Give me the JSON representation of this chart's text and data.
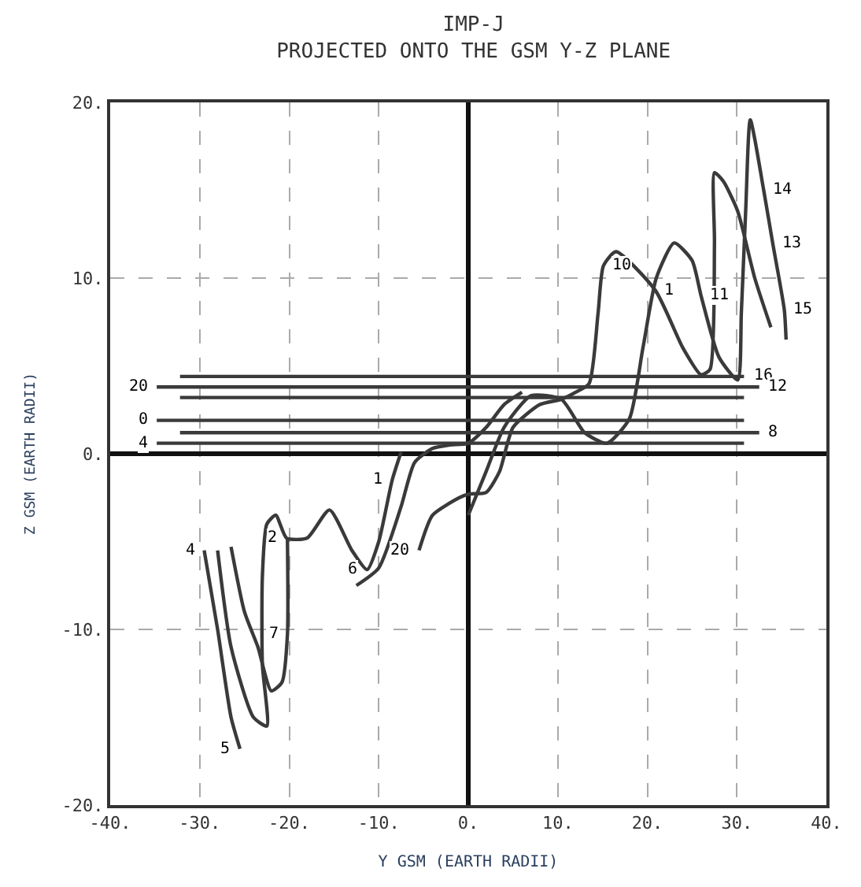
{
  "chart_data": {
    "type": "line",
    "title": "IMP-J",
    "subtitle": "PROJECTED ONTO THE GSM Y-Z PLANE",
    "xlabel": "Y GSM (EARTH RADII)",
    "ylabel": "Z GSM (EARTH RADII)",
    "xlim": [
      -40,
      40
    ],
    "ylim": [
      -20,
      20
    ],
    "xticks": [
      {
        "value": -40,
        "label": "-40."
      },
      {
        "value": -30,
        "label": "-30."
      },
      {
        "value": -20,
        "label": "-20."
      },
      {
        "value": -10,
        "label": "-10."
      },
      {
        "value": 0,
        "label": "0."
      },
      {
        "value": 10,
        "label": "10."
      },
      {
        "value": 20,
        "label": "20."
      },
      {
        "value": 30,
        "label": "30."
      },
      {
        "value": 40,
        "label": "40."
      }
    ],
    "yticks": [
      {
        "value": -20,
        "label": "-20."
      },
      {
        "value": -10,
        "label": "-10."
      },
      {
        "value": 0,
        "label": "0."
      },
      {
        "value": 10,
        "label": "10."
      },
      {
        "value": 20,
        "label": "20."
      }
    ],
    "grid": true,
    "marker": "none",
    "line_style": "solid",
    "series": [
      {
        "color": "#3a3a3a",
        "x": [
          -32.2,
          30.8
        ],
        "values": [
          4.4,
          4.4
        ]
      },
      {
        "color": "#3a3a3a",
        "x": [
          -34.8,
          32.5
        ],
        "values": [
          3.8,
          3.8
        ]
      },
      {
        "color": "#3a3a3a",
        "x": [
          -32.2,
          30.8
        ],
        "values": [
          3.2,
          3.2
        ]
      },
      {
        "color": "#3a3a3a",
        "x": [
          -34.8,
          30.8
        ],
        "values": [
          1.9,
          1.9
        ]
      },
      {
        "color": "#3a3a3a",
        "x": [
          -32.2,
          32.5
        ],
        "values": [
          1.2,
          1.2
        ]
      },
      {
        "color": "#3a3a3a",
        "x": [
          -34.8,
          30.8
        ],
        "values": [
          0.6,
          0.6
        ]
      },
      {
        "color": "#3a3a3a",
        "x": [
          -7.5,
          -8.5,
          -10,
          -11.3,
          -13,
          -15.5,
          -18,
          -20.3,
          -21.5,
          -22.5,
          -23,
          -23,
          -22.5,
          -24,
          -26.5,
          -28
        ],
        "values": [
          0.1,
          -1.5,
          -5,
          -6.6,
          -5.5,
          -3.2,
          -4.8,
          -4.8,
          -3.5,
          -4,
          -7,
          -12,
          -15.5,
          -15,
          -11,
          -5.5
        ]
      },
      {
        "color": "#3a3a3a",
        "x": [
          -5.5,
          -4,
          -1,
          0,
          2,
          3.5,
          5,
          8,
          10.4,
          12,
          13.5,
          14.5,
          15.1,
          16.5,
          20.9,
          24,
          26,
          27,
          27.5,
          27.5,
          28.5,
          30.1,
          32,
          33.8
        ],
        "values": [
          -5.5,
          -3.5,
          -2.5,
          -2.3,
          -2.2,
          -1,
          1.5,
          2.8,
          3.1,
          3.5,
          4,
          8,
          10.7,
          11.5,
          9.3,
          6,
          4.5,
          4.8,
          12,
          16,
          15.5,
          13.8,
          10,
          7.2
        ]
      },
      {
        "color": "#3a3a3a",
        "x": [
          -29.5,
          -28,
          -26.5,
          -25.5
        ],
        "values": [
          -5.5,
          -10,
          -15,
          -16.8
        ]
      },
      {
        "color": "#3a3a3a",
        "x": [
          -26.5,
          -25,
          -23.5,
          -22,
          -20.8,
          -20.2,
          -20.2
        ],
        "values": [
          -5.3,
          -9,
          -11,
          -13.5,
          -13,
          -10.3,
          -4.8
        ]
      },
      {
        "color": "#3a3a3a",
        "x": [
          -12.5,
          -10,
          -7.5,
          -6,
          -4,
          -2,
          0,
          2,
          4,
          6
        ],
        "values": [
          -7.5,
          -6.5,
          -3,
          -0.5,
          0.3,
          0.5,
          0.6,
          1.5,
          2.8,
          3.5
        ]
      },
      {
        "color": "#3a3a3a",
        "x": [
          0,
          2,
          4,
          7,
          10.4,
          13,
          15.5,
          18,
          19.5,
          21,
          23,
          25,
          26,
          28,
          30.1,
          30.5,
          31,
          31.5,
          33,
          34,
          35.3,
          35.5
        ],
        "values": [
          -3.5,
          -1,
          1.5,
          3.3,
          3.1,
          1.2,
          0.6,
          2,
          6,
          10,
          12,
          11,
          9,
          5.5,
          4.2,
          8,
          14,
          19,
          15,
          12,
          8.2,
          6.5
        ]
      }
    ],
    "annotations": [
      {
        "text": "20",
        "x": -34.8,
        "y": 3.8
      },
      {
        "text": "0",
        "x": -34.8,
        "y": 1.9
      },
      {
        "text": "4",
        "x": -34.8,
        "y": 0.6
      },
      {
        "text": "16",
        "x": 30.8,
        "y": 4.4
      },
      {
        "text": "12",
        "x": 32.5,
        "y": 3.8
      },
      {
        "text": "8",
        "x": 32.5,
        "y": 1.2
      },
      {
        "text": "1",
        "x": -8.5,
        "y": -1.5
      },
      {
        "text": "2",
        "x": -20.3,
        "y": -4.8
      },
      {
        "text": "4",
        "x": -29.5,
        "y": -5.5
      },
      {
        "text": "5",
        "x": -25.5,
        "y": -16.8
      },
      {
        "text": "6",
        "x": -11.3,
        "y": -6.6
      },
      {
        "text": "7",
        "x": -20.2,
        "y": -10.3
      },
      {
        "text": "20",
        "x": -5.5,
        "y": -5.5
      },
      {
        "text": "10",
        "x": 15.1,
        "y": 10.7
      },
      {
        "text": "1",
        "x": 20.9,
        "y": 9.3
      },
      {
        "text": "11",
        "x": 26,
        "y": 9
      },
      {
        "text": "14",
        "x": 33,
        "y": 15
      },
      {
        "text": "13",
        "x": 34,
        "y": 12
      },
      {
        "text": "15",
        "x": 35.3,
        "y": 8.2
      }
    ]
  }
}
